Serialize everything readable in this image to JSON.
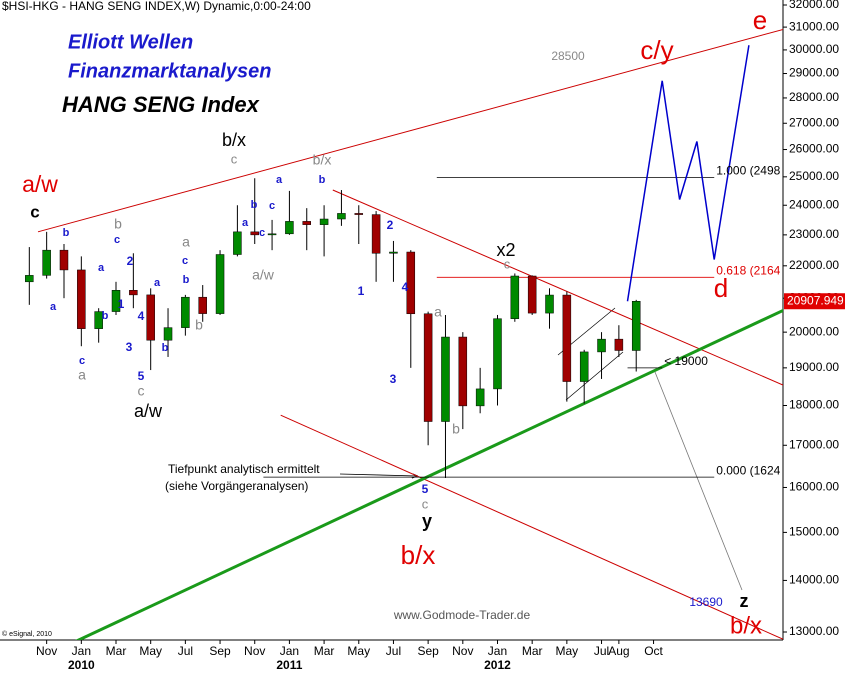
{
  "chart_data": {
    "type": "candlestick",
    "title": "$HSI-HKG - HANG SENG INDEX,W) Dynamic,0:00-24:00",
    "x": [
      "2009-10",
      "2009-11",
      "2009-12",
      "2010-01",
      "2010-02",
      "2010-03",
      "2010-04",
      "2010-05",
      "2010-06",
      "2010-07",
      "2010-08",
      "2010-09",
      "2010-10",
      "2010-11",
      "2010-12",
      "2011-01",
      "2011-02",
      "2011-03",
      "2011-04",
      "2011-05",
      "2011-06",
      "2011-07",
      "2011-08",
      "2011-09",
      "2011-10",
      "2011-11",
      "2011-12",
      "2012-01",
      "2012-02",
      "2012-03",
      "2012-04",
      "2012-05",
      "2012-06",
      "2012-07",
      "2012-08",
      "2012-09"
    ],
    "open": [
      21500,
      21700,
      22500,
      21870,
      20100,
      20600,
      21240,
      21100,
      19770,
      20130,
      21030,
      20540,
      22360,
      23100,
      23000,
      23035,
      23450,
      23340,
      23530,
      23720,
      23680,
      22400,
      22440,
      20535,
      17590,
      19860,
      17990,
      18434,
      20390,
      21680,
      20555,
      21095,
      18630,
      19440,
      19800,
      19480
    ],
    "high": [
      22600,
      23100,
      22700,
      22300,
      20700,
      21500,
      22400,
      21300,
      20700,
      21100,
      21400,
      22500,
      24000,
      24950,
      23500,
      24500,
      23900,
      24000,
      24530,
      24000,
      23800,
      22800,
      22500,
      20600,
      20500,
      20000,
      19000,
      20500,
      21760,
      21700,
      21300,
      21200,
      19500,
      20000,
      20200,
      20950
    ],
    "low": [
      20800,
      21600,
      21000,
      19600,
      19700,
      20500,
      20700,
      18940,
      19300,
      19900,
      20300,
      20500,
      22300,
      22700,
      22500,
      23000,
      22500,
      22300,
      23300,
      22700,
      21500,
      21500,
      19000,
      17000,
      16220,
      17400,
      17800,
      18000,
      20300,
      20500,
      20100,
      18100,
      18050,
      18700,
      19300,
      18900
    ],
    "close": [
      21700,
      22500,
      21870,
      20100,
      20600,
      21240,
      21100,
      19770,
      20130,
      21030,
      20540,
      22360,
      23100,
      23000,
      23035,
      23450,
      23340,
      23530,
      23720,
      23680,
      22400,
      22440,
      20535,
      17590,
      19860,
      17990,
      18434,
      20390,
      21680,
      20555,
      21095,
      18630,
      19440,
      19800,
      19480,
      20907.949
    ],
    "up_color": "#008a00",
    "down_color": "#a00000",
    "last_price_color": "#e00000",
    "log_scale": true,
    "xlim": [
      "2009-09",
      "2013-06"
    ],
    "ylim": [
      13000,
      32000
    ],
    "yticks": [
      {
        "value": 13000,
        "label": "13000.00"
      },
      {
        "value": 14000,
        "label": "14000.00"
      },
      {
        "value": 15000,
        "label": "15000.00"
      },
      {
        "value": 16000,
        "label": "16000.00"
      },
      {
        "value": 17000,
        "label": "17000.00"
      },
      {
        "value": 18000,
        "label": "18000.00"
      },
      {
        "value": 19000,
        "label": "19000.00"
      },
      {
        "value": 20000,
        "label": "20000.00"
      },
      {
        "value": 21000,
        "label": "21000.00"
      },
      {
        "value": 22000,
        "label": "22000.00"
      },
      {
        "value": 23000,
        "label": "23000.00"
      },
      {
        "value": 24000,
        "label": "24000.00"
      },
      {
        "value": 25000,
        "label": "25000.00"
      },
      {
        "value": 26000,
        "label": "26000.00"
      },
      {
        "value": 27000,
        "label": "27000.00"
      },
      {
        "value": 28000,
        "label": "28000.00"
      },
      {
        "value": 29000,
        "label": "29000.00"
      },
      {
        "value": 30000,
        "label": "30000.00"
      },
      {
        "value": 31000,
        "label": "31000.00"
      },
      {
        "value": 32000,
        "label": "32000.00"
      }
    ],
    "xticks": [
      {
        "value": "2009-11",
        "label": "Nov"
      },
      {
        "value": "2010-01",
        "label": "Jan"
      },
      {
        "value": "2010-03",
        "label": "Mar"
      },
      {
        "value": "2010-05",
        "label": "May"
      },
      {
        "value": "2010-07",
        "label": "Jul"
      },
      {
        "value": "2010-09",
        "label": "Sep"
      },
      {
        "value": "2010-11",
        "label": "Nov"
      },
      {
        "value": "2011-01",
        "label": "Jan"
      },
      {
        "value": "2011-03",
        "label": "Mar"
      },
      {
        "value": "2011-05",
        "label": "May"
      },
      {
        "value": "2011-07",
        "label": "Jul"
      },
      {
        "value": "2011-09",
        "label": "Sep"
      },
      {
        "value": "2011-11",
        "label": "Nov"
      },
      {
        "value": "2012-01",
        "label": "Jan"
      },
      {
        "value": "2012-03",
        "label": "Mar"
      },
      {
        "value": "2012-05",
        "label": "May"
      },
      {
        "value": "2012-07",
        "label": "Jul"
      },
      {
        "value": "2012-08",
        "label": "Aug"
      },
      {
        "value": "2012-10",
        "label": "Oct"
      }
    ],
    "year_ticks": [
      {
        "value": "2010-01",
        "label": "2010"
      },
      {
        "value": "2011-01",
        "label": "2011"
      },
      {
        "value": "2012-01",
        "label": "2012"
      }
    ],
    "projection": {
      "color": "#0000cc",
      "x": [
        "2012-09",
        "2012-11",
        "2012-12",
        "2013-01",
        "2013-02",
        "2013-04"
      ],
      "y": [
        20907.949,
        28700,
        24200,
        26300,
        22200,
        30200
      ]
    },
    "trend_lines": [
      {
        "color": "#cc0000",
        "x": [
          "2009-11",
          "2013-06"
        ],
        "y": [
          23100,
          30900
        ]
      },
      {
        "color": "#cc0000",
        "x": [
          "2011-04",
          "2013-06"
        ],
        "y": [
          24530,
          18530
        ]
      },
      {
        "color": "#cc0000",
        "x": [
          "2011-01",
          "2013-06"
        ],
        "y": [
          17750,
          12860
        ]
      },
      {
        "color": "#1a9a1a",
        "x": [
          "2010-01",
          "2013-06"
        ],
        "y": [
          12800,
          20640
        ]
      }
    ],
    "levels": [
      {
        "label": "1.000 (2498",
        "value": 24980,
        "color": "#000000",
        "x": [
          "2011-10",
          "2013-02"
        ]
      },
      {
        "label": "0.618 (2164",
        "value": 21640,
        "color": "#e00000",
        "x": [
          "2011-10",
          "2013-02"
        ]
      },
      {
        "label": "0.000 (1624",
        "value": 16240,
        "color": "#000000",
        "x": [
          "2010-12",
          "2013-02"
        ]
      },
      {
        "label": "< 19000",
        "value": 19000,
        "color": "#000000",
        "x": [
          "2012-09",
          "2012-11"
        ]
      }
    ],
    "annotations": [
      {
        "text": "Elliott Wellen",
        "color": "#1a1acc"
      },
      {
        "text": "Finanzmarktanalysen",
        "color": "#1a1acc"
      },
      {
        "text": "HANG SENG Index",
        "color": "#000000"
      },
      {
        "text": "28500",
        "color": "#888888"
      },
      {
        "text": "c/y",
        "color": "#e00000"
      },
      {
        "text": "e",
        "color": "#e00000"
      },
      {
        "text": "b/x",
        "color": "#000000"
      },
      {
        "text": "c",
        "color": "#888888"
      },
      {
        "text": "a/w",
        "color": "#e00000"
      },
      {
        "text": "c",
        "color": "#000000"
      },
      {
        "text": "b/x",
        "color": "#888888"
      },
      {
        "text": "b",
        "color": "#1a1acc"
      },
      {
        "text": "a",
        "color": "#1a1acc"
      },
      {
        "text": "b",
        "color": "#1a1acc"
      },
      {
        "text": "c",
        "color": "#1a1acc"
      },
      {
        "text": "a",
        "color": "#1a1acc"
      },
      {
        "text": "c",
        "color": "#1a1acc"
      },
      {
        "text": "a/w",
        "color": "#888888"
      },
      {
        "text": "2",
        "color": "#1a1acc"
      },
      {
        "text": "1",
        "color": "#1a1acc"
      },
      {
        "text": "4",
        "color": "#1a1acc"
      },
      {
        "text": "3",
        "color": "#1a1acc"
      },
      {
        "text": "5",
        "color": "#1a1acc"
      },
      {
        "text": "c",
        "color": "#888888"
      },
      {
        "text": "y",
        "color": "#000000"
      },
      {
        "text": "b",
        "color": "#888888"
      },
      {
        "text": "c",
        "color": "#1a1acc"
      },
      {
        "text": "b",
        "color": "#1a1acc"
      },
      {
        "text": "a",
        "color": "#1a1acc"
      },
      {
        "text": "2",
        "color": "#1a1acc"
      },
      {
        "text": "a",
        "color": "#888888"
      },
      {
        "text": "c",
        "color": "#1a1acc"
      },
      {
        "text": "a",
        "color": "#1a1acc"
      },
      {
        "text": "b",
        "color": "#1a1acc"
      },
      {
        "text": "1",
        "color": "#1a1acc"
      },
      {
        "text": "b",
        "color": "#1a1acc"
      },
      {
        "text": "a",
        "color": "#1a1acc"
      },
      {
        "text": "4",
        "color": "#1a1acc"
      },
      {
        "text": "b",
        "color": "#888888"
      },
      {
        "text": "3",
        "color": "#1a1acc"
      },
      {
        "text": "b",
        "color": "#1a1acc"
      },
      {
        "text": "c",
        "color": "#1a1acc"
      },
      {
        "text": "a",
        "color": "#888888"
      },
      {
        "text": "5",
        "color": "#1a1acc"
      },
      {
        "text": "c",
        "color": "#888888"
      },
      {
        "text": "a/w",
        "color": "#000000"
      },
      {
        "text": "a",
        "color": "#888888"
      },
      {
        "text": "b",
        "color": "#888888"
      },
      {
        "text": "x2",
        "color": "#000000"
      },
      {
        "text": "c",
        "color": "#888888"
      },
      {
        "text": "d",
        "color": "#e00000"
      },
      {
        "text": "Tiefpunkt analytisch ermittelt",
        "color": "#000000"
      },
      {
        "text": "(siehe Vorgängeranalysen)",
        "color": "#000000"
      },
      {
        "text": "b/x",
        "color": "#e00000"
      },
      {
        "text": "z",
        "color": "#000000"
      },
      {
        "text": "b/x",
        "color": "#e00000"
      },
      {
        "text": "13690",
        "color": "#1a1acc"
      },
      {
        "text": "www.Godmode-Trader.de",
        "color": "#555555"
      },
      {
        "text": "© eSignal, 2010",
        "color": "#000000"
      }
    ]
  }
}
